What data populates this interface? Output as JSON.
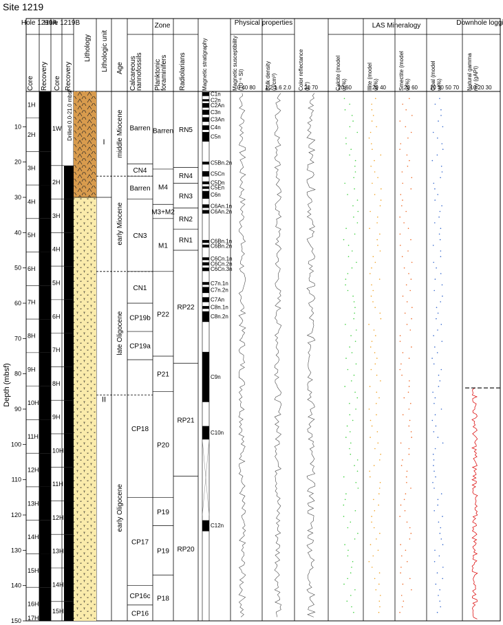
{
  "title": "Site 1219",
  "depth_axis": {
    "label": "Depth (mbsf)",
    "min": 0,
    "max": 150,
    "ticks": [
      10,
      20,
      30,
      40,
      50,
      60,
      70,
      80,
      90,
      100,
      110,
      120,
      130,
      140,
      150
    ]
  },
  "headers": {
    "hole_a": "Hole 1219A",
    "hole_b": "Hole 1219B",
    "core": "Core",
    "recovery": "Recovery",
    "lithology": "Lithology",
    "lithologic_unit": "Lithologic unit",
    "age": "Age",
    "zone": "Zone",
    "calc_nanno": "Calcareous nannofossils",
    "plank_foram": "Planktonic foraminifers",
    "radiolarians": "Radiolarians",
    "mag_strat": "Magnetic stratigraphy",
    "phys_props": "Physical properties",
    "mag_sus": "Magnetic susceptibility (10⁻⁶ SI)",
    "bulk_density": "Bulk density (g/cm³)",
    "color_refl": "Color reflectance (L*)",
    "las": "LAS Mineralogy",
    "calcite": "Calcite (model wt%)",
    "illite": "Illite (model wt%)",
    "smectite": "Smectite (model wt%)",
    "opal": "Opal (model wt%)",
    "downhole": "Downhole logging",
    "gamma": "Natural gamma ray (gAPI)"
  },
  "scales": {
    "mag_sus": "0 40 80",
    "bulk_density": "1.2 1.6 2.0",
    "color_refl": "30 70",
    "calcite": "20 60",
    "illite": "20 40",
    "smectite": "20 60",
    "opal": "10 30 50 70",
    "gamma": "10 20 30"
  },
  "cores_a": [
    {
      "name": "1H",
      "top": 0,
      "bot": 7.5
    },
    {
      "name": "2H",
      "top": 7.5,
      "bot": 17
    },
    {
      "name": "3H",
      "top": 17,
      "bot": 26.5
    },
    {
      "name": "4H",
      "top": 26.5,
      "bot": 36
    },
    {
      "name": "5H",
      "top": 36,
      "bot": 45.5
    },
    {
      "name": "6H",
      "top": 45.5,
      "bot": 55
    },
    {
      "name": "7H",
      "top": 55,
      "bot": 64.5
    },
    {
      "name": "8H",
      "top": 64.5,
      "bot": 74
    },
    {
      "name": "9H",
      "top": 74,
      "bot": 83.5
    },
    {
      "name": "10H",
      "top": 83.5,
      "bot": 93
    },
    {
      "name": "11H",
      "top": 93,
      "bot": 102.5
    },
    {
      "name": "12H",
      "top": 102.5,
      "bot": 112
    },
    {
      "name": "13H",
      "top": 112,
      "bot": 121.5
    },
    {
      "name": "14H",
      "top": 121.5,
      "bot": 131
    },
    {
      "name": "15H",
      "top": 131,
      "bot": 140.5
    },
    {
      "name": "16H",
      "top": 140.5,
      "bot": 150
    },
    {
      "name": "17H",
      "top": 150,
      "bot": 151
    }
  ],
  "cores_b": [
    {
      "name": "1W",
      "top": 0,
      "bot": 21
    },
    {
      "name": "2H",
      "top": 21,
      "bot": 30.5
    },
    {
      "name": "3H",
      "top": 30.5,
      "bot": 40
    },
    {
      "name": "4H",
      "top": 40,
      "bot": 49.5
    },
    {
      "name": "5H",
      "top": 49.5,
      "bot": 59
    },
    {
      "name": "6H",
      "top": 59,
      "bot": 68.5
    },
    {
      "name": "7H",
      "top": 68.5,
      "bot": 78
    },
    {
      "name": "8H",
      "top": 78,
      "bot": 87.5
    },
    {
      "name": "9H",
      "top": 87.5,
      "bot": 97
    },
    {
      "name": "10H",
      "top": 97,
      "bot": 106.5
    },
    {
      "name": "11H",
      "top": 106.5,
      "bot": 116
    },
    {
      "name": "12H",
      "top": 116,
      "bot": 125.5
    },
    {
      "name": "13H",
      "top": 125.5,
      "bot": 135
    },
    {
      "name": "14H",
      "top": 135,
      "bot": 144.5
    },
    {
      "name": "15H",
      "top": 144.5,
      "bot": 150
    }
  ],
  "drilled_note": "Drilled 0.0-21.0 mbsf",
  "lith_units": [
    {
      "name": "I",
      "top": 0,
      "bot": 30
    },
    {
      "name": "II",
      "top": 30,
      "bot": 150
    }
  ],
  "lith_boundary": 30,
  "ages": [
    {
      "name": "middle Miocene",
      "top": 0,
      "bot": 24
    },
    {
      "name": "early Miocene",
      "top": 24,
      "bot": 51
    },
    {
      "name": "late Oligocene",
      "top": 51,
      "bot": 86
    },
    {
      "name": "early Oligocene",
      "top": 86,
      "bot": 150
    }
  ],
  "nanno_zones": [
    {
      "name": "Barren",
      "top": 0,
      "bot": 20.5
    },
    {
      "name": "CN4",
      "top": 20.5,
      "bot": 24
    },
    {
      "name": "Barren",
      "top": 24,
      "bot": 30.5
    },
    {
      "name": "CN3",
      "top": 30.5,
      "bot": 51
    },
    {
      "name": "CN1",
      "top": 51,
      "bot": 60
    },
    {
      "name": "CP19b",
      "top": 60,
      "bot": 68
    },
    {
      "name": "CP19a",
      "top": 68,
      "bot": 76
    },
    {
      "name": "CP18",
      "top": 76,
      "bot": 115
    },
    {
      "name": "CP17",
      "top": 115,
      "bot": 140
    },
    {
      "name": "CP16c",
      "top": 140,
      "bot": 145.5
    },
    {
      "name": "CP16",
      "top": 145.5,
      "bot": 150
    }
  ],
  "foram_zones": [
    {
      "name": "Barren",
      "top": 0,
      "bot": 22
    },
    {
      "name": "M4",
      "top": 22,
      "bot": 32
    },
    {
      "name": "M3+M2",
      "top": 32,
      "bot": 36
    },
    {
      "name": "M1",
      "top": 36,
      "bot": 51
    },
    {
      "name": "P22",
      "top": 51,
      "bot": 75
    },
    {
      "name": "P21",
      "top": 75,
      "bot": 85
    },
    {
      "name": "P20",
      "top": 85,
      "bot": 115
    },
    {
      "name": "P19",
      "top": 115,
      "bot": 123
    },
    {
      "name": "P19",
      "top": 123,
      "bot": 137
    },
    {
      "name": "P18",
      "top": 137,
      "bot": 150
    }
  ],
  "rad_zones": [
    {
      "name": "RN5",
      "top": 0,
      "bot": 21.5
    },
    {
      "name": "RN4",
      "top": 21.5,
      "bot": 26
    },
    {
      "name": "RN3",
      "top": 26,
      "bot": 33
    },
    {
      "name": "RN2",
      "top": 33,
      "bot": 39
    },
    {
      "name": "RN1",
      "top": 39,
      "bot": 45
    },
    {
      "name": "RP22",
      "top": 45,
      "bot": 77
    },
    {
      "name": "RP21",
      "top": 77,
      "bot": 109
    },
    {
      "name": "RP20",
      "top": 109,
      "bot": 150
    }
  ],
  "chrons": [
    {
      "name": "C1n",
      "top": 0.2,
      "bot": 1.3
    },
    {
      "name": "C2n",
      "top": 2.2,
      "bot": 2.8
    },
    {
      "name": "C2An",
      "top": 3.3,
      "bot": 4.6
    },
    {
      "name": "C3n",
      "top": 5.2,
      "bot": 6.6
    },
    {
      "name": "C3An",
      "top": 7.3,
      "bot": 8.6
    },
    {
      "name": "C4n",
      "top": 9.6,
      "bot": 10.9
    },
    {
      "name": "C5n",
      "top": 11.5,
      "bot": 14.2
    },
    {
      "name": "C5Bn.2n",
      "top": 19.9,
      "bot": 20.7
    },
    {
      "name": "C5Cn",
      "top": 22.6,
      "bot": 24.1
    },
    {
      "name": "C5Dn",
      "top": 25.5,
      "bot": 26.3
    },
    {
      "name": "C5En",
      "top": 26.9,
      "bot": 27.6
    },
    {
      "name": "C6n",
      "top": 28.2,
      "bot": 30.4
    },
    {
      "name": "C6An.1n",
      "top": 32.0,
      "bot": 33.0
    },
    {
      "name": "C6An.2n",
      "top": 33.6,
      "bot": 34.6
    },
    {
      "name": "C6Bn.1n",
      "top": 42.1,
      "bot": 42.9
    },
    {
      "name": "C6Bn.2n",
      "top": 43.4,
      "bot": 44.2
    },
    {
      "name": "C6Cn.1n",
      "top": 47.0,
      "bot": 47.8
    },
    {
      "name": "C6Cn.2n",
      "top": 48.4,
      "bot": 49.3
    },
    {
      "name": "C6Cn.3n",
      "top": 49.9,
      "bot": 50.9
    },
    {
      "name": "C7n.1n",
      "top": 54.0,
      "bot": 54.8
    },
    {
      "name": "C7n.2n",
      "top": 55.4,
      "bot": 57.1
    },
    {
      "name": "C7An",
      "top": 58.3,
      "bot": 59.7
    },
    {
      "name": "C8n.1n",
      "top": 60.8,
      "bot": 61.6
    },
    {
      "name": "C8n.2n",
      "top": 62.3,
      "bot": 65.3
    },
    {
      "name": "C9n",
      "top": 73.8,
      "bot": 88.0
    },
    {
      "name": "C10n",
      "top": 94.8,
      "bot": 98.6
    },
    {
      "name": "C12n",
      "top": 121.5,
      "bot": 124.6
    }
  ],
  "mag_gaps": [
    {
      "top": 98.6,
      "bot": 120.2
    }
  ],
  "log_start": 84,
  "colors": {
    "calcite": "#3ecf3e",
    "illite": "#f0a020",
    "smectite": "#ee6622",
    "opal": "#3366cc",
    "gamma": "#dd1111",
    "lith_I": "#d89b4d",
    "lith_II": "#faebab"
  }
}
